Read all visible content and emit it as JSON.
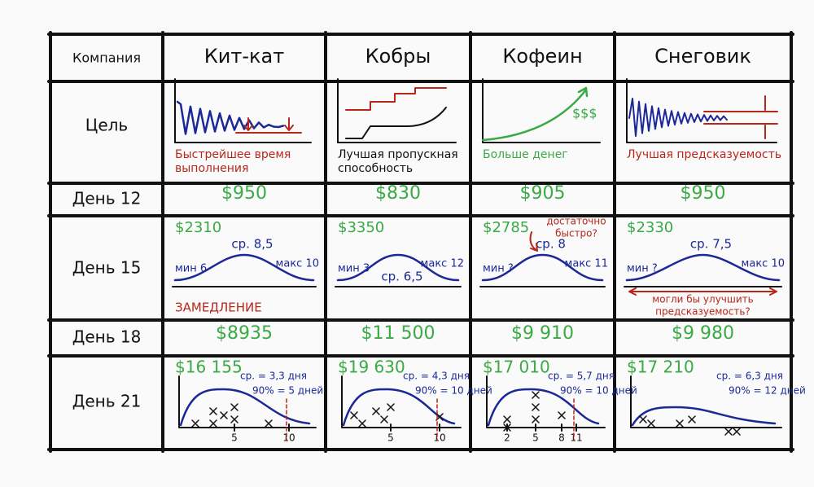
{
  "header": {
    "label": "Компания",
    "columns": [
      "Кит-кат",
      "Кобры",
      "Кофеин",
      "Снеговик"
    ]
  },
  "rows": [
    {
      "label": "Цель",
      "cells": [
        {
          "caption": [
            "Быстрейшее время",
            "выполнения"
          ]
        },
        {
          "caption": [
            "Лучшая пропускная",
            "способность"
          ]
        },
        {
          "caption": [
            "Больше денег"
          ],
          "note": "$$$"
        },
        {
          "caption": [
            "Лучшая предсказуемость"
          ]
        }
      ]
    },
    {
      "label": "День 12",
      "cells": [
        "$950",
        "$830",
        "$905",
        "$950"
      ]
    },
    {
      "label": "День 15",
      "cells": [
        {
          "amount": "$2310",
          "min": "мин 6",
          "avg": "ср. 8,5",
          "max": "макс 10",
          "note": [
            "ЗАМЕДЛЕНИЕ"
          ]
        },
        {
          "amount": "$3350",
          "min": "мин 3",
          "avg": "ср. 6,5",
          "max": "макс 12"
        },
        {
          "amount": "$2785",
          "min": "мин ?",
          "avg": "ср. 8",
          "max": "макс 11",
          "note": [
            "достаточно",
            "быстро?"
          ]
        },
        {
          "amount": "$2330",
          "min": "мин ?",
          "avg": "ср. 7,5",
          "max": "макс 10",
          "note": [
            "могли бы улучшить",
            "предсказуемость?"
          ]
        }
      ]
    },
    {
      "label": "День 18",
      "cells": [
        "$8935",
        "$11 500",
        "$9 910",
        "$9 980"
      ]
    },
    {
      "label": "День 21",
      "cells": [
        {
          "amount": "$16 155",
          "avg": "ср. = 3,3 дня",
          "p90": "90% = 5 дней",
          "ticks": [
            "5",
            "10"
          ]
        },
        {
          "amount": "$19 630",
          "avg": "ср. = 4,3 дня",
          "p90": "90% = 10 дней",
          "ticks": [
            "5",
            "10"
          ]
        },
        {
          "amount": "$17 010",
          "avg": "ср. = 5,7 дня",
          "p90": "90% = 10 дней",
          "ticks": [
            "2",
            "5",
            "8",
            "11"
          ]
        },
        {
          "amount": "$17 210",
          "avg": "ср. = 6,3 дня",
          "p90": "90% = 12 дней"
        }
      ]
    }
  ]
}
